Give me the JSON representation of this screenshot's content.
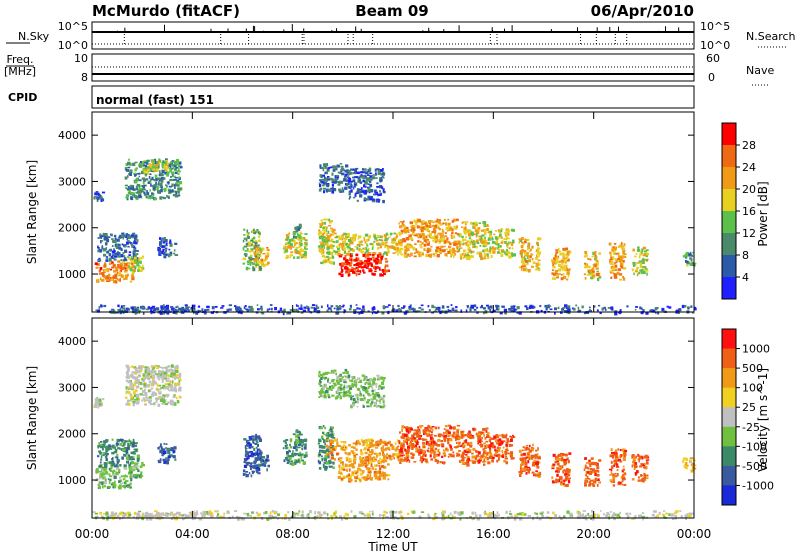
{
  "header": {
    "station": "McMurdo (fitACF)",
    "beam": "Beam 09",
    "date": "06/Apr/2010"
  },
  "strips": {
    "nsky": {
      "label": "N.Sky",
      "tick_top": "10^5",
      "tick_bottom": "10^0",
      "right_label": "N.Search"
    },
    "freq": {
      "label": "Freq.",
      "unit": "[MHz]",
      "tick_top": "10",
      "tick_bottom": "8",
      "right_tick_top": "60",
      "right_tick_bottom": "0",
      "right_label": "Nave"
    },
    "cpid": {
      "label": "CPID",
      "value": "normal (fast) 151"
    }
  },
  "xaxis": {
    "title": "Time UT",
    "ticks": [
      0,
      4,
      8,
      12,
      16,
      20,
      24
    ],
    "tick_labels": [
      "00:00",
      "04:00",
      "08:00",
      "12:00",
      "16:00",
      "20:00",
      "00:00"
    ],
    "range_hours": [
      0,
      24
    ]
  },
  "colors": {
    "power": [
      "#2020ff",
      "#2a5aa8",
      "#4a8a6a",
      "#5cc04a",
      "#e8d020",
      "#f09a18",
      "#f06a14",
      "#ff0000"
    ],
    "velocity": [
      "#1a2ad8",
      "#3a5aa0",
      "#3a8a6a",
      "#70c040",
      "#c0c0c0",
      "#f0d020",
      "#f09a18",
      "#f06014",
      "#ff1010"
    ]
  },
  "panels": [
    {
      "name": "power",
      "ylabel": "Slant Range [km]",
      "yticks": [
        1000,
        2000,
        3000,
        4000
      ],
      "ylim": [
        180,
        4500
      ],
      "colorbar": {
        "label": "Power [dB]",
        "ticks": [
          "28",
          "24",
          "20",
          "16",
          "12",
          "8",
          "4"
        ],
        "range": [
          0,
          32
        ]
      }
    },
    {
      "name": "velocity",
      "ylabel": "Slant Range [km]",
      "yticks": [
        1000,
        2000,
        3000,
        4000
      ],
      "ylim": [
        180,
        4500
      ],
      "colorbar": {
        "label": "Velocity [m s^-1]",
        "ticks": [
          "1000",
          "500",
          "100",
          "25",
          "-25",
          "-100",
          "-500",
          "-1000"
        ]
      }
    }
  ],
  "chart_data": {
    "type": "heatmap",
    "x_unit": "hours UT",
    "y_unit": "km",
    "echo_regions": [
      {
        "t": [
          0.1,
          1.6
        ],
        "r": [
          850,
          1300
        ],
        "power": 24,
        "vel_class": 3
      },
      {
        "t": [
          0.2,
          1.8
        ],
        "r": [
          1300,
          1900
        ],
        "power": 7,
        "vel_class": 2
      },
      {
        "t": [
          1.4,
          2.0
        ],
        "r": [
          1050,
          1400
        ],
        "power": 16,
        "vel_class": 3
      },
      {
        "t": [
          0.7,
          4.2
        ],
        "r": [
          180,
          320
        ],
        "power": 6,
        "vel_class": 4
      },
      {
        "t": [
          0.05,
          0.4
        ],
        "r": [
          2600,
          2800
        ],
        "power": 6,
        "vel_class": 4
      },
      {
        "t": [
          1.3,
          3.5
        ],
        "r": [
          2650,
          3500
        ],
        "power": 10,
        "vel_class": 4
      },
      {
        "t": [
          2.0,
          3.0
        ],
        "r": [
          3200,
          3480
        ],
        "power": 17,
        "vel_class": 4
      },
      {
        "t": [
          2.6,
          3.3
        ],
        "r": [
          1400,
          1800
        ],
        "power": 6,
        "vel_class": 1
      },
      {
        "t": [
          6.0,
          6.7
        ],
        "r": [
          1100,
          2000
        ],
        "power": 13,
        "vel_class": 1
      },
      {
        "t": [
          6.4,
          7.0
        ],
        "r": [
          1200,
          1600
        ],
        "power": 21,
        "vel_class": 1
      },
      {
        "t": [
          7.6,
          8.5
        ],
        "r": [
          1350,
          1900
        ],
        "power": 18,
        "vel_class": 2
      },
      {
        "t": [
          8.0,
          8.3
        ],
        "r": [
          1800,
          2100
        ],
        "power": 12,
        "vel_class": 2
      },
      {
        "t": [
          9.0,
          9.6
        ],
        "r": [
          1250,
          2200
        ],
        "power": 18,
        "vel_class": 2
      },
      {
        "t": [
          9.3,
          12.2
        ],
        "r": [
          1450,
          1900
        ],
        "power": 18,
        "vel_class": 6
      },
      {
        "t": [
          9.8,
          11.8
        ],
        "r": [
          1000,
          1450
        ],
        "power": 29,
        "vel_class": 6
      },
      {
        "t": [
          9.0,
          10.2
        ],
        "r": [
          2800,
          3400
        ],
        "power": 7,
        "vel_class": 3
      },
      {
        "t": [
          10.2,
          11.6
        ],
        "r": [
          2600,
          3300
        ],
        "power": 6,
        "vel_class": 3
      },
      {
        "t": [
          12.2,
          14.6
        ],
        "r": [
          1400,
          2200
        ],
        "power": 22,
        "vel_class": 7
      },
      {
        "t": [
          14.6,
          15.8
        ],
        "r": [
          1350,
          2150
        ],
        "power": 19,
        "vel_class": 7
      },
      {
        "t": [
          15.8,
          16.8
        ],
        "r": [
          1400,
          2000
        ],
        "power": 17,
        "vel_class": 7
      },
      {
        "t": [
          17.0,
          17.8
        ],
        "r": [
          1100,
          1800
        ],
        "power": 20,
        "vel_class": 7
      },
      {
        "t": [
          18.3,
          19.0
        ],
        "r": [
          900,
          1600
        ],
        "power": 21,
        "vel_class": 7
      },
      {
        "t": [
          19.6,
          20.2
        ],
        "r": [
          900,
          1500
        ],
        "power": 20,
        "vel_class": 7
      },
      {
        "t": [
          20.6,
          21.2
        ],
        "r": [
          900,
          1700
        ],
        "power": 22,
        "vel_class": 7
      },
      {
        "t": [
          21.5,
          22.1
        ],
        "r": [
          1000,
          1600
        ],
        "power": 17,
        "vel_class": 7
      },
      {
        "t": [
          23.5,
          24.0
        ],
        "r": [
          1200,
          1500
        ],
        "power": 12,
        "vel_class": 5
      },
      {
        "t": [
          0.0,
          24.0
        ],
        "r": [
          180,
          350
        ],
        "power": 5,
        "vel_class": 4
      }
    ]
  }
}
